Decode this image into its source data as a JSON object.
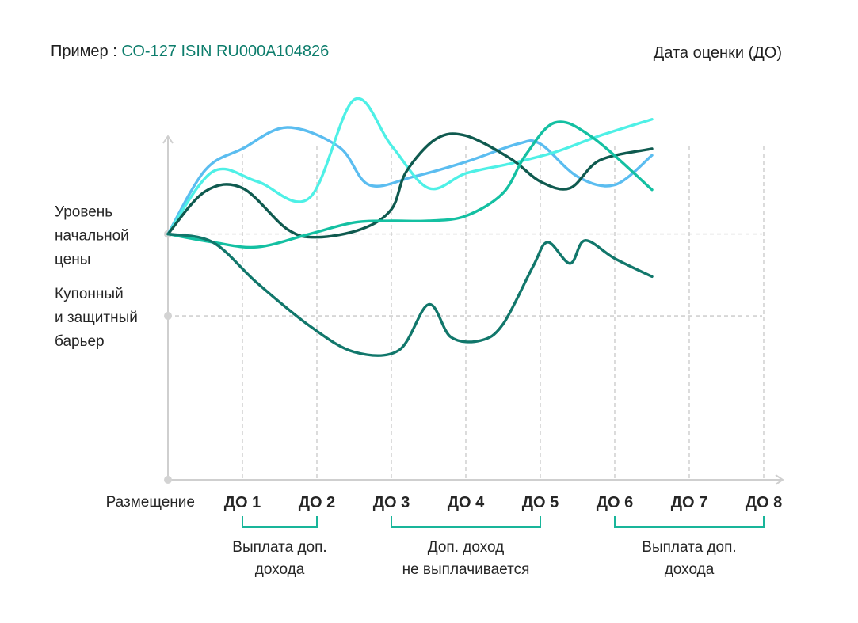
{
  "header": {
    "prefix": "Пример : ",
    "isin": "СО-127 ISIN RU000A104826",
    "right_title": "Дата оценки (ДО)"
  },
  "colors": {
    "axis": "#cfcfcf",
    "grid": "#c8c8c8",
    "bracket": "#19b59a",
    "light_blue": "#5bbdf0",
    "cyan": "#4ef0e6",
    "dark_green": "#0f5a4f",
    "mid_green": "#14c0a2",
    "teal": "#11776b"
  },
  "chart_data": {
    "type": "line",
    "title": "",
    "categories": [
      "Размещение",
      "ДО 1",
      "ДО 2",
      "ДО 3",
      "ДО 4",
      "ДО 5",
      "ДО 6",
      "ДО 7",
      "ДО 8"
    ],
    "y_levels": [
      {
        "name": "Уровень начальной цены",
        "lines": [
          "Уровень",
          "начальной",
          "цены"
        ],
        "value": 100
      },
      {
        "name": "Купонный и защитный барьер",
        "lines": [
          "Купонный",
          "и защитный",
          "барьер"
        ],
        "value": 50
      }
    ],
    "ylim": [
      -50,
      180
    ],
    "series": [
      {
        "name": "light-blue",
        "color": "#5bbdf0",
        "points": [
          [
            0,
            100
          ],
          [
            0.5,
            139
          ],
          [
            1,
            152
          ],
          [
            1.6,
            165
          ],
          [
            2.3,
            153
          ],
          [
            2.7,
            130
          ],
          [
            3.3,
            135
          ],
          [
            4,
            144
          ],
          [
            4.7,
            155
          ],
          [
            5,
            155
          ],
          [
            5.5,
            135
          ],
          [
            6,
            130
          ],
          [
            6.5,
            148
          ]
        ]
      },
      {
        "name": "cyan",
        "color": "#4ef0e6",
        "points": [
          [
            0,
            100
          ],
          [
            0.6,
            138
          ],
          [
            1.2,
            132
          ],
          [
            1.9,
            122
          ],
          [
            2.5,
            182
          ],
          [
            3,
            154
          ],
          [
            3.5,
            128
          ],
          [
            4,
            137
          ],
          [
            4.6,
            143
          ],
          [
            5.2,
            150
          ],
          [
            5.8,
            160
          ],
          [
            6.5,
            170
          ]
        ]
      },
      {
        "name": "dark-green",
        "color": "#0f5a4f",
        "points": [
          [
            0,
            100
          ],
          [
            0.5,
            126
          ],
          [
            1,
            128
          ],
          [
            1.6,
            103
          ],
          [
            2,
            98
          ],
          [
            2.6,
            103
          ],
          [
            3,
            115
          ],
          [
            3.2,
            138
          ],
          [
            3.6,
            158
          ],
          [
            4,
            160
          ],
          [
            4.6,
            146
          ],
          [
            5,
            132
          ],
          [
            5.4,
            128
          ],
          [
            5.8,
            145
          ],
          [
            6.5,
            152
          ]
        ]
      },
      {
        "name": "mid-green",
        "color": "#14c0a2",
        "points": [
          [
            0,
            100
          ],
          [
            0.6,
            95
          ],
          [
            1.2,
            92
          ],
          [
            1.9,
            100
          ],
          [
            2.5,
            107
          ],
          [
            3,
            108
          ],
          [
            3.5,
            108
          ],
          [
            4,
            111
          ],
          [
            4.5,
            125
          ],
          [
            4.8,
            148
          ],
          [
            5.2,
            168
          ],
          [
            5.7,
            159
          ],
          [
            6.5,
            127
          ]
        ]
      },
      {
        "name": "teal",
        "color": "#11776b",
        "points": [
          [
            0,
            100
          ],
          [
            0.6,
            95
          ],
          [
            1.2,
            70
          ],
          [
            1.9,
            44
          ],
          [
            2.5,
            28
          ],
          [
            3.1,
            29
          ],
          [
            3.5,
            57
          ],
          [
            3.8,
            37
          ],
          [
            4.2,
            35
          ],
          [
            4.5,
            45
          ],
          [
            4.9,
            80
          ],
          [
            5.1,
            95
          ],
          [
            5.4,
            82
          ],
          [
            5.6,
            96
          ],
          [
            6,
            85
          ],
          [
            6.5,
            74
          ]
        ]
      }
    ],
    "xlabel": "",
    "ylabel": "",
    "brackets": [
      {
        "from": 1,
        "to": 2,
        "lines": [
          "Выплата доп.",
          "дохода"
        ]
      },
      {
        "from": 3,
        "to": 5,
        "lines": [
          "Доп. доход",
          "не выплачивается"
        ]
      },
      {
        "from": 6,
        "to": 8,
        "lines": [
          "Выплата доп.",
          "дохода"
        ]
      }
    ]
  }
}
